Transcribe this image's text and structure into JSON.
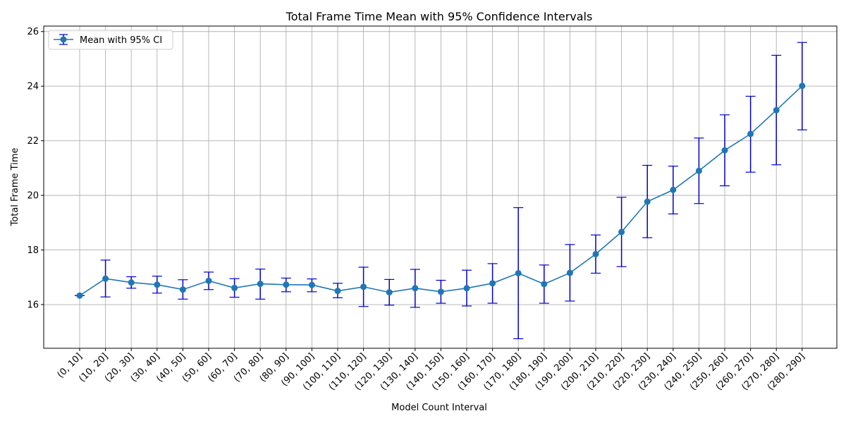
{
  "chart_data": {
    "type": "line",
    "title": "Total Frame Time Mean with 95% Confidence Intervals",
    "xlabel": "Model Count Interval",
    "ylabel": "Total Frame Time",
    "ylim": [
      14.4,
      26.2
    ],
    "yticks": [
      16,
      18,
      20,
      22,
      24,
      26
    ],
    "grid": true,
    "legend_position": "top-left",
    "categories": [
      "(0, 10]",
      "(10, 20]",
      "(20, 30]",
      "(30, 40]",
      "(40, 50]",
      "(50, 60]",
      "(60, 70]",
      "(70, 80]",
      "(80, 90]",
      "(90, 100]",
      "(100, 110]",
      "(110, 120]",
      "(120, 130]",
      "(130, 140]",
      "(140, 150]",
      "(150, 160]",
      "(160, 170]",
      "(170, 180]",
      "(180, 190]",
      "(190, 200]",
      "(200, 210]",
      "(210, 220]",
      "(220, 230]",
      "(230, 240]",
      "(240, 250]",
      "(250, 260]",
      "(260, 270]",
      "(270, 280]",
      "(280, 290]"
    ],
    "series": [
      {
        "name": "Mean with 95% CI",
        "color": "#1f77b4",
        "errorbar_color": "#0000cc",
        "values": [
          16.33,
          16.95,
          16.81,
          16.73,
          16.55,
          16.87,
          16.61,
          16.76,
          16.73,
          16.72,
          16.5,
          16.65,
          16.45,
          16.6,
          16.47,
          16.6,
          16.78,
          17.15,
          16.75,
          17.16,
          17.85,
          18.66,
          19.77,
          20.2,
          20.9,
          21.65,
          22.25,
          23.12,
          24.01
        ],
        "ci_low": [
          16.33,
          16.28,
          16.6,
          16.42,
          16.2,
          16.55,
          16.27,
          16.2,
          16.47,
          16.47,
          16.25,
          15.93,
          15.98,
          15.9,
          16.05,
          15.95,
          16.05,
          14.75,
          16.05,
          16.13,
          17.15,
          17.39,
          18.45,
          19.32,
          19.7,
          20.35,
          20.85,
          21.12,
          22.4
        ],
        "ci_high": [
          16.33,
          17.63,
          17.02,
          17.04,
          16.91,
          17.19,
          16.95,
          17.3,
          16.97,
          16.94,
          16.78,
          17.37,
          16.92,
          17.29,
          16.89,
          17.26,
          17.5,
          19.55,
          17.45,
          18.2,
          18.55,
          19.93,
          21.1,
          21.07,
          22.1,
          22.95,
          23.63,
          25.13,
          25.6
        ]
      }
    ]
  }
}
